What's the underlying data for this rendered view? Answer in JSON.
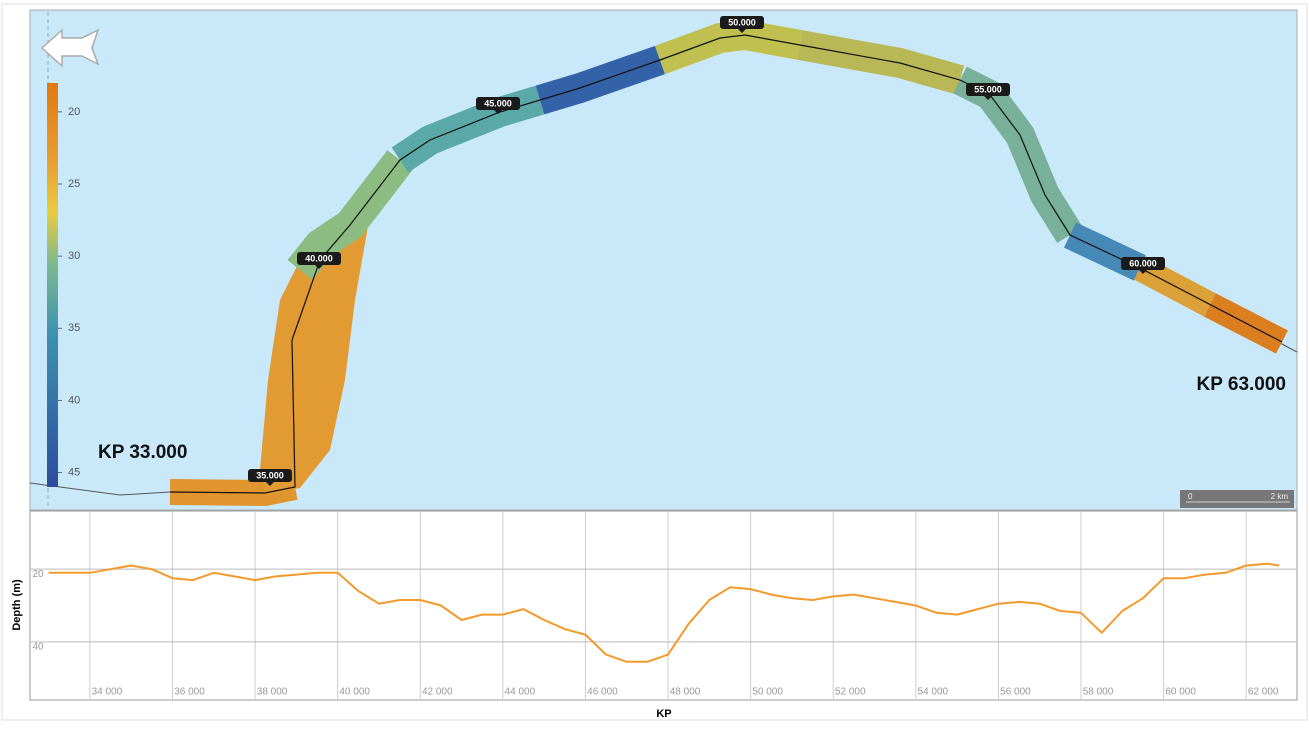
{
  "map": {
    "kp_markers": [
      "35.000",
      "40.000",
      "45.000",
      "50.000",
      "55.000",
      "60.000"
    ],
    "start_label": "KP 33.000",
    "end_label": "KP 63.000",
    "color_scale": {
      "range": [
        18,
        46
      ],
      "ticks": [
        20,
        25,
        30,
        35,
        40,
        45
      ]
    },
    "scale_bar": {
      "start": "0",
      "end": "2 km"
    }
  },
  "chart_data": {
    "type": "line",
    "x_label": "KP",
    "y_label": "Depth (m)",
    "color": "#f39a2c",
    "y_inverted": true,
    "grid": true,
    "xlim": [
      32550,
      63230
    ],
    "ylim": [
      4,
      56
    ],
    "xticks": [
      {
        "value": 34000,
        "label": "34 000"
      },
      {
        "value": 36000,
        "label": "36 000"
      },
      {
        "value": 38000,
        "label": "38 000"
      },
      {
        "value": 40000,
        "label": "40 000"
      },
      {
        "value": 42000,
        "label": "42 000"
      },
      {
        "value": 44000,
        "label": "44 000"
      },
      {
        "value": 46000,
        "label": "46 000"
      },
      {
        "value": 48000,
        "label": "48 000"
      },
      {
        "value": 50000,
        "label": "50 000"
      },
      {
        "value": 52000,
        "label": "52 000"
      },
      {
        "value": 54000,
        "label": "54 000"
      },
      {
        "value": 56000,
        "label": "56 000"
      },
      {
        "value": 58000,
        "label": "58 000"
      },
      {
        "value": 60000,
        "label": "60 000"
      },
      {
        "value": 62000,
        "label": "62 000"
      }
    ],
    "yticks": [
      20,
      40
    ],
    "x": [
      33000,
      33500,
      34000,
      34500,
      35000,
      35500,
      36000,
      36500,
      37000,
      37500,
      38000,
      38500,
      39000,
      39500,
      40000,
      40500,
      41000,
      41500,
      42000,
      42500,
      43000,
      43500,
      44000,
      44500,
      45000,
      45500,
      46000,
      46500,
      47000,
      47500,
      48000,
      48500,
      49000,
      49500,
      50000,
      50500,
      51000,
      51500,
      52000,
      52500,
      53000,
      53500,
      54000,
      54500,
      55000,
      55500,
      56000,
      56500,
      57000,
      57500,
      58000,
      58500,
      59000,
      59500,
      60000,
      60500,
      61000,
      61500,
      62000,
      62500,
      62800
    ],
    "values": [
      21,
      21,
      21,
      20,
      19,
      20,
      22.5,
      23,
      21,
      22,
      23,
      22,
      21.5,
      21,
      21,
      26,
      29.5,
      28.5,
      28.5,
      30,
      34,
      32.5,
      32.5,
      31,
      34,
      36.5,
      38,
      43.5,
      45.5,
      45.5,
      43.5,
      35,
      28.5,
      25,
      25.5,
      27,
      28,
      28.5,
      27.5,
      27,
      28,
      29,
      30,
      32,
      32.5,
      31,
      29.5,
      29,
      29.5,
      31.5,
      32,
      37.5,
      31.5,
      28,
      22.5,
      22.5,
      21.5,
      21,
      19,
      18.5,
      19
    ]
  }
}
